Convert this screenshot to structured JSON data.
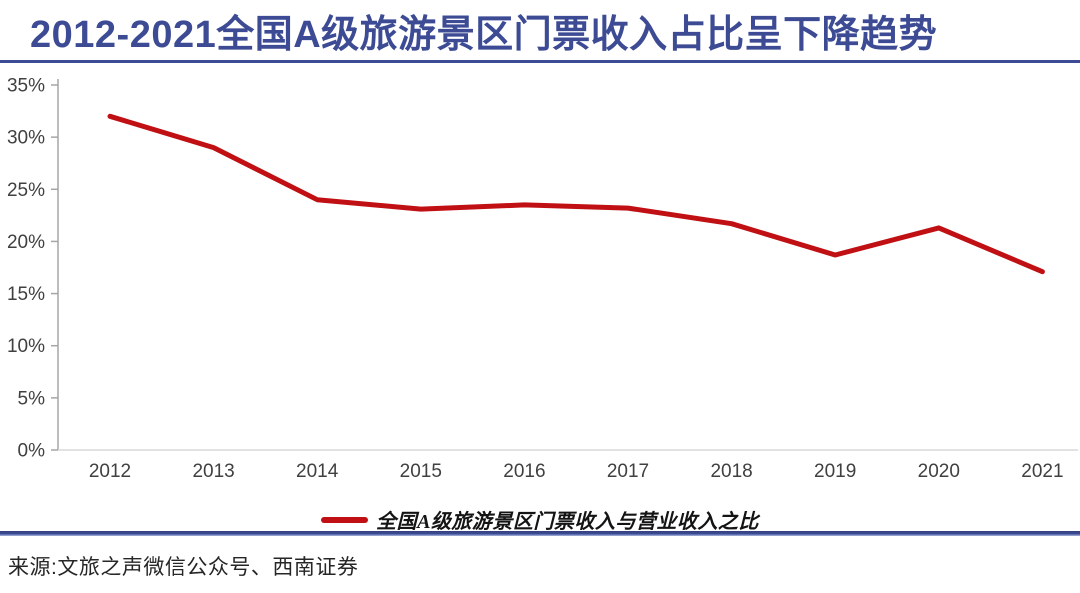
{
  "title": "2012-2021全国A级旅游景区门票收入占比呈下降趋势",
  "source": "来源:文旅之声微信公众号、西南证券",
  "colors": {
    "title_navy": "#3c4b94",
    "line_red": "#c01014",
    "y_axis_gray": "#a6a6a6",
    "x_axis_gray": "#d9d9d9",
    "tick_text": "#404040"
  },
  "chart_data": {
    "type": "line",
    "title": "2012-2021全国A级旅游景区门票收入占比呈下降趋势",
    "categories": [
      "2012",
      "2013",
      "2014",
      "2015",
      "2016",
      "2017",
      "2018",
      "2019",
      "2020",
      "2021"
    ],
    "series": [
      {
        "name": "全国A级旅游景区门票收入与营业收入之比",
        "values": [
          32,
          29,
          24,
          23.1,
          23.5,
          23.2,
          21.7,
          18.7,
          21.3,
          17.1
        ],
        "color": "#c01014"
      }
    ],
    "xlabel": "",
    "ylabel": "",
    "ylim": [
      0,
      35
    ],
    "ytick_step": 5,
    "ytick_labels": [
      "0%",
      "5%",
      "10%",
      "15%",
      "20%",
      "25%",
      "30%",
      "35%"
    ],
    "grid": false,
    "legend": "全国A级旅游景区门票收入与营业收入之比",
    "legend_position": "bottom"
  }
}
